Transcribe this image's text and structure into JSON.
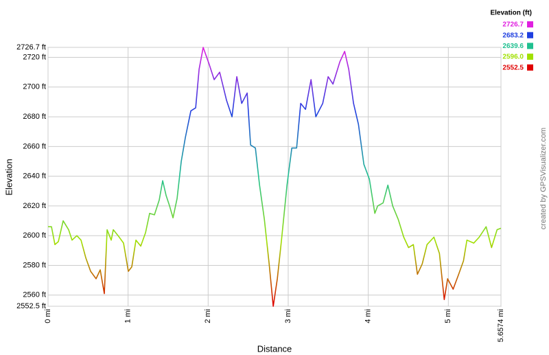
{
  "chart_data": {
    "type": "line",
    "x_label": "Distance",
    "y_label": "Elevation",
    "watermark": "created by GPSVisualizer.com",
    "legend": {
      "title": "Elevation (ft)",
      "items": [
        {
          "value": 2726.7,
          "label": "2726.7",
          "color": "#e020e0"
        },
        {
          "value": 2683.2,
          "label": "2683.2",
          "color": "#2040e0"
        },
        {
          "value": 2639.6,
          "label": "2639.6",
          "color": "#20c090"
        },
        {
          "value": 2596.0,
          "label": "2596.0",
          "color": "#a0e000"
        },
        {
          "value": 2552.5,
          "label": "2552.5",
          "color": "#e00000"
        }
      ]
    },
    "xlim": [
      0,
      5.6574
    ],
    "ylim": [
      2552.5,
      2726.7
    ],
    "xticks": [
      {
        "value": 0,
        "label": "0 mi"
      },
      {
        "value": 1,
        "label": "1 mi"
      },
      {
        "value": 2,
        "label": "2 mi"
      },
      {
        "value": 3,
        "label": "3 mi"
      },
      {
        "value": 4,
        "label": "4 mi"
      },
      {
        "value": 5,
        "label": "5 mi"
      },
      {
        "value": 5.6574,
        "label": "5.6574 mi"
      }
    ],
    "yticks": [
      {
        "value": 2552.5,
        "label": "2552.5 ft"
      },
      {
        "value": 2560,
        "label": "2560 ft"
      },
      {
        "value": 2580,
        "label": "2580 ft"
      },
      {
        "value": 2600,
        "label": "2600 ft"
      },
      {
        "value": 2620,
        "label": "2620 ft"
      },
      {
        "value": 2640,
        "label": "2640 ft"
      },
      {
        "value": 2660,
        "label": "2660 ft"
      },
      {
        "value": 2680,
        "label": "2680 ft"
      },
      {
        "value": 2700,
        "label": "2700 ft"
      },
      {
        "value": 2720,
        "label": "2720 ft"
      },
      {
        "value": 2726.7,
        "label": "2726.7 ft"
      }
    ],
    "grid": true,
    "x": [
      0,
      0.043,
      0.086,
      0.129,
      0.189,
      0.257,
      0.3,
      0.36,
      0.412,
      0.472,
      0.532,
      0.6,
      0.652,
      0.703,
      0.738,
      0.789,
      0.815,
      0.875,
      0.943,
      1.003,
      1.046,
      1.098,
      1.158,
      1.218,
      1.269,
      1.329,
      1.389,
      1.432,
      1.475,
      1.518,
      1.561,
      1.612,
      1.664,
      1.715,
      1.784,
      1.844,
      1.887,
      1.938,
      2.015,
      2.075,
      2.144,
      2.23,
      2.298,
      2.358,
      2.419,
      2.487,
      2.53,
      2.59,
      2.642,
      2.702,
      2.762,
      2.813,
      2.864,
      2.916,
      2.985,
      3.045,
      3.105,
      3.156,
      3.216,
      3.285,
      3.345,
      3.431,
      3.499,
      3.559,
      3.645,
      3.705,
      3.756,
      3.816,
      3.877,
      3.945,
      4.014,
      4.082,
      4.117,
      4.185,
      4.245,
      4.305,
      4.374,
      4.443,
      4.503,
      4.563,
      4.614,
      4.674,
      4.734,
      4.82,
      4.889,
      4.949,
      4.991,
      5.06,
      5.129,
      5.189,
      5.232,
      5.317,
      5.386,
      5.472,
      5.54,
      5.609,
      5.657
    ],
    "series": [
      {
        "name": "Elevation",
        "values": [
          2606,
          2606,
          2594,
          2596,
          2610,
          2604,
          2597,
          2600,
          2597,
          2585,
          2576,
          2571,
          2577,
          2561,
          2604,
          2597,
          2604,
          2600,
          2595,
          2576,
          2579,
          2597,
          2593,
          2602,
          2615,
          2614,
          2624,
          2637,
          2627,
          2620,
          2612,
          2625,
          2650,
          2666,
          2684,
          2686,
          2712,
          2726.7,
          2715,
          2705,
          2710,
          2691,
          2680,
          2707,
          2689,
          2696,
          2661,
          2659,
          2634,
          2611,
          2581,
          2552.5,
          2571,
          2597,
          2634,
          2659,
          2659,
          2689,
          2685,
          2705,
          2680,
          2689,
          2707,
          2702,
          2717,
          2724,
          2712,
          2689,
          2675,
          2648,
          2638,
          2615,
          2620,
          2622,
          2634,
          2620,
          2611,
          2599,
          2592,
          2594,
          2574,
          2581,
          2594,
          2599,
          2588,
          2557,
          2571,
          2564,
          2574,
          2583,
          2597,
          2595,
          2599,
          2606,
          2592,
          2604,
          2605
        ]
      }
    ]
  }
}
